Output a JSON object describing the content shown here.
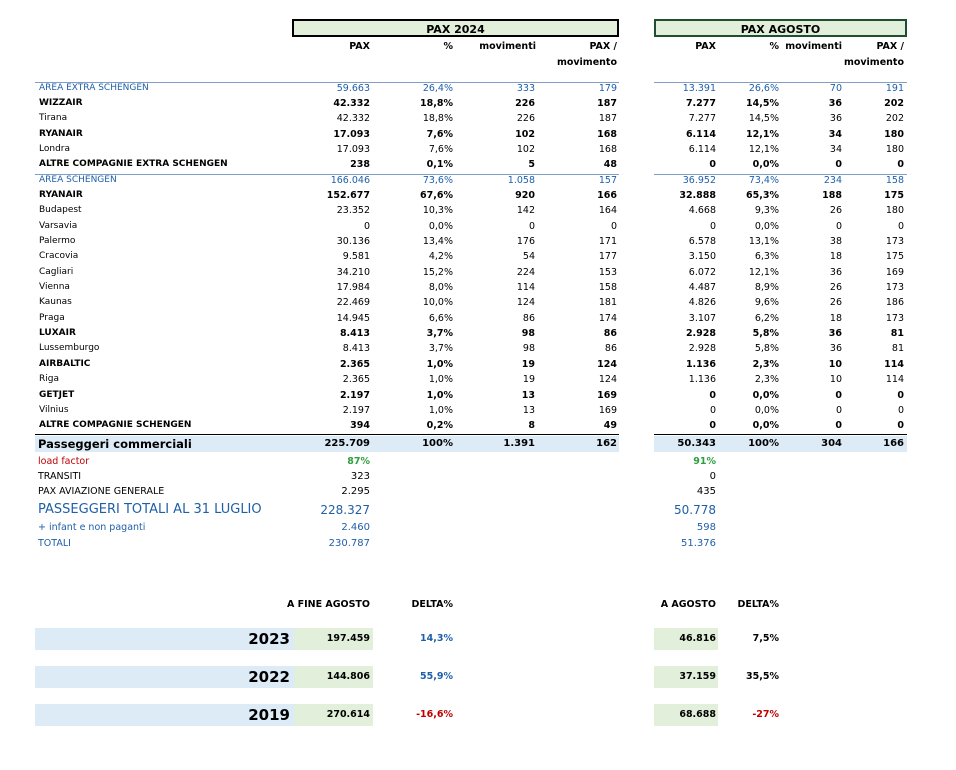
{
  "headers": {
    "pax2024": "PAX 2024",
    "paxagosto": "PAX AGOSTO",
    "col_pax": "PAX",
    "col_pct": "%",
    "col_mov": "movimenti",
    "col_ppm1": "PAX /",
    "col_ppm2": "movimento"
  },
  "rows": [
    {
      "label": "AREA EXTRA SCHENGEN",
      "pax": "59.663",
      "pct": "26,4%",
      "mov": "333",
      "ppm": "179",
      "apax": "13.391",
      "apct": "26,6%",
      "amov": "70",
      "appm": "191"
    },
    {
      "label": "WIZZAIR",
      "pax": "42.332",
      "pct": "18,8%",
      "mov": "226",
      "ppm": "187",
      "apax": "7.277",
      "apct": "14,5%",
      "amov": "36",
      "appm": "202"
    },
    {
      "label": "Tirana",
      "pax": "42.332",
      "pct": "18,8%",
      "mov": "226",
      "ppm": "187",
      "apax": "7.277",
      "apct": "14,5%",
      "amov": "36",
      "appm": "202"
    },
    {
      "label": "RYANAIR",
      "pax": "17.093",
      "pct": "7,6%",
      "mov": "102",
      "ppm": "168",
      "apax": "6.114",
      "apct": "12,1%",
      "amov": "34",
      "appm": "180"
    },
    {
      "label": "Londra",
      "pax": "17.093",
      "pct": "7,6%",
      "mov": "102",
      "ppm": "168",
      "apax": "6.114",
      "apct": "12,1%",
      "amov": "34",
      "appm": "180"
    },
    {
      "label": "ALTRE COMPAGNIE EXTRA SCHENGEN",
      "pax": "238",
      "pct": "0,1%",
      "mov": "5",
      "ppm": "48",
      "apax": "0",
      "apct": "0,0%",
      "amov": "0",
      "appm": "0"
    },
    {
      "label": "AREA  SCHENGEN",
      "pax": "166.046",
      "pct": "73,6%",
      "mov": "1.058",
      "ppm": "157",
      "apax": "36.952",
      "apct": "73,4%",
      "amov": "234",
      "appm": "158"
    },
    {
      "label": "RYANAIR",
      "pax": "152.677",
      "pct": "67,6%",
      "mov": "920",
      "ppm": "166",
      "apax": "32.888",
      "apct": "65,3%",
      "amov": "188",
      "appm": "175"
    },
    {
      "label": "Budapest",
      "pax": "23.352",
      "pct": "10,3%",
      "mov": "142",
      "ppm": "164",
      "apax": "4.668",
      "apct": "9,3%",
      "amov": "26",
      "appm": "180"
    },
    {
      "label": "Varsavia",
      "pax": "0",
      "pct": "0,0%",
      "mov": "0",
      "ppm": "0",
      "apax": "0",
      "apct": "0,0%",
      "amov": "0",
      "appm": "0"
    },
    {
      "label": "Palermo",
      "pax": "30.136",
      "pct": "13,4%",
      "mov": "176",
      "ppm": "171",
      "apax": "6.578",
      "apct": "13,1%",
      "amov": "38",
      "appm": "173"
    },
    {
      "label": "Cracovia",
      "pax": "9.581",
      "pct": "4,2%",
      "mov": "54",
      "ppm": "177",
      "apax": "3.150",
      "apct": "6,3%",
      "amov": "18",
      "appm": "175"
    },
    {
      "label": "Cagliari",
      "pax": "34.210",
      "pct": "15,2%",
      "mov": "224",
      "ppm": "153",
      "apax": "6.072",
      "apct": "12,1%",
      "amov": "36",
      "appm": "169"
    },
    {
      "label": "Vienna",
      "pax": "17.984",
      "pct": "8,0%",
      "mov": "114",
      "ppm": "158",
      "apax": "4.487",
      "apct": "8,9%",
      "amov": "26",
      "appm": "173"
    },
    {
      "label": "Kaunas",
      "pax": "22.469",
      "pct": "10,0%",
      "mov": "124",
      "ppm": "181",
      "apax": "4.826",
      "apct": "9,6%",
      "amov": "26",
      "appm": "186"
    },
    {
      "label": "Praga",
      "pax": "14.945",
      "pct": "6,6%",
      "mov": "86",
      "ppm": "174",
      "apax": "3.107",
      "apct": "6,2%",
      "amov": "18",
      "appm": "173"
    },
    {
      "label": "LUXAIR",
      "pax": "8.413",
      "pct": "3,7%",
      "mov": "98",
      "ppm": "86",
      "apax": "2.928",
      "apct": "5,8%",
      "amov": "36",
      "appm": "81"
    },
    {
      "label": "Lussemburgo",
      "pax": "8.413",
      "pct": "3,7%",
      "mov": "98",
      "ppm": "86",
      "apax": "2.928",
      "apct": "5,8%",
      "amov": "36",
      "appm": "81"
    },
    {
      "label": "AIRBALTIC",
      "pax": "2.365",
      "pct": "1,0%",
      "mov": "19",
      "ppm": "124",
      "apax": "1.136",
      "apct": "2,3%",
      "amov": "10",
      "appm": "114"
    },
    {
      "label": "Riga",
      "pax": "2.365",
      "pct": "1,0%",
      "mov": "19",
      "ppm": "124",
      "apax": "1.136",
      "apct": "2,3%",
      "amov": "10",
      "appm": "114"
    },
    {
      "label": "GETJET",
      "pax": "2.197",
      "pct": "1,0%",
      "mov": "13",
      "ppm": "169",
      "apax": "0",
      "apct": "0,0%",
      "amov": "0",
      "appm": "0"
    },
    {
      "label": "Vilnius",
      "pax": "2.197",
      "pct": "1,0%",
      "mov": "13",
      "ppm": "169",
      "apax": "0",
      "apct": "0,0%",
      "amov": "0",
      "appm": "0"
    },
    {
      "label": "ALTRE COMPAGNIE SCHENGEN",
      "pax": "394",
      "pct": "0,2%",
      "mov": "8",
      "ppm": "49",
      "apax": "0",
      "apct": "0,0%",
      "amov": "0",
      "appm": "0"
    }
  ],
  "totals": {
    "label": "Passeggeri commerciali",
    "pax": "225.709",
    "pct": "100%",
    "mov": "1.391",
    "ppm": "162",
    "apax": "50.343",
    "apct": "100%",
    "amov": "304",
    "appm": "166"
  },
  "extra": {
    "lf_label": "load factor",
    "lf": "87%",
    "alf": "91%",
    "tr_label": "TRANSITI",
    "tr": "323",
    "atr": "0",
    "ag_label": "PAX AVIAZIONE GENERALE",
    "ag": "2.295",
    "aag": "435",
    "pt_label": "PASSEGGERI TOTALI AL 31 LUGLIO",
    "pt": "228.327",
    "apt": "50.778",
    "inf_label": "+ infant e non paganti",
    "inf": "2.460",
    "ainf": "598",
    "tot_label": "TOTALI",
    "tot": "230.787",
    "atot": "51.376"
  },
  "comparison": {
    "h_fine": "A FINE AGOSTO",
    "h_delta": "DELTA%",
    "h_agosto": "A AGOSTO",
    "h_delta2": "DELTA%",
    "years": [
      {
        "year": "2023",
        "fine": "197.459",
        "delta": "14,3%",
        "agosto": "46.816",
        "delta2": "7,5%"
      },
      {
        "year": "2022",
        "fine": "144.806",
        "delta": "55,9%",
        "agosto": "37.159",
        "delta2": "35,5%"
      },
      {
        "year": "2019",
        "fine": "270.614",
        "delta": "-16,6%",
        "agosto": "68.688",
        "delta2": "-27%"
      }
    ]
  }
}
